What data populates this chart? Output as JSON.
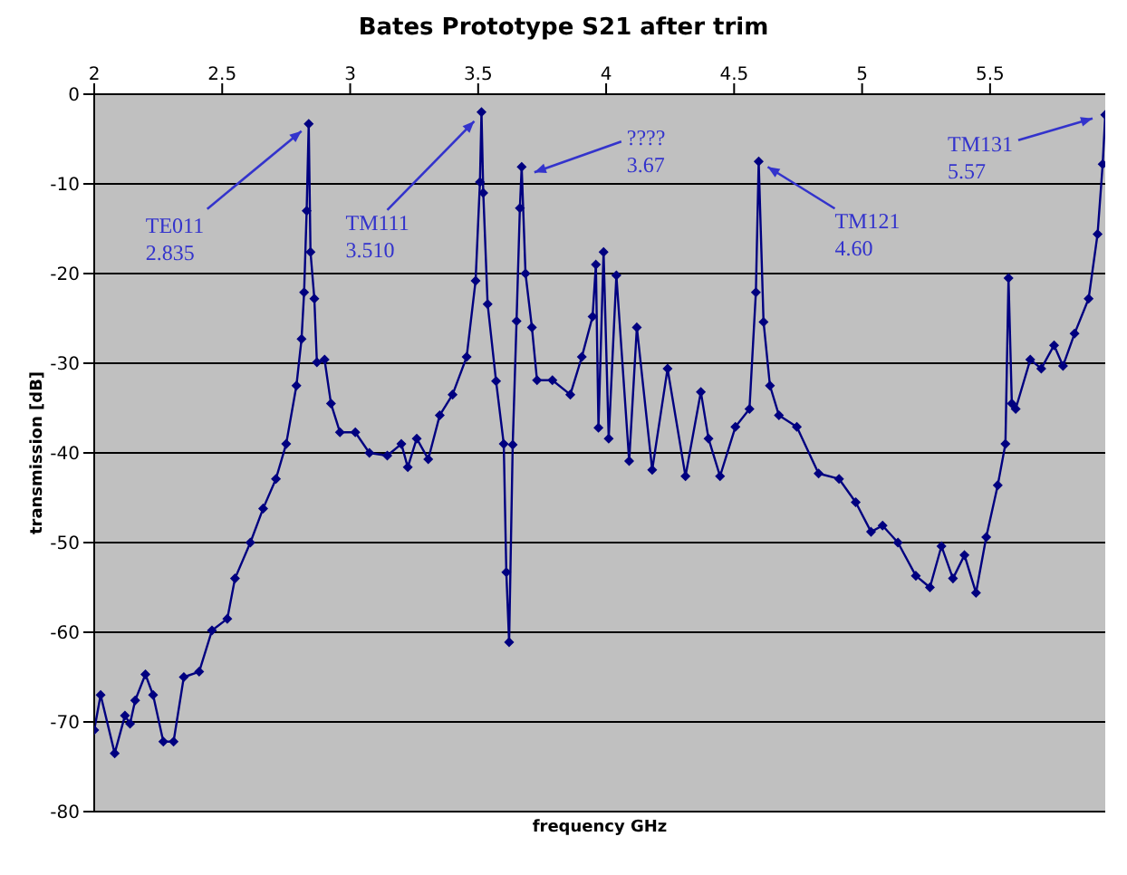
{
  "chart_data": {
    "type": "line",
    "title": "Bates Prototype S21 after trim",
    "xlabel": "frequency GHz",
    "ylabel": "transmission [dB]",
    "x": [
      2.0,
      2.025,
      2.08,
      2.12,
      2.14,
      2.16,
      2.2,
      2.23,
      2.27,
      2.31,
      2.35,
      2.41,
      2.46,
      2.52,
      2.55,
      2.61,
      2.66,
      2.71,
      2.75,
      2.79,
      2.81,
      2.82,
      2.83,
      2.838,
      2.845,
      2.86,
      2.87,
      2.9,
      2.925,
      2.96,
      3.02,
      3.075,
      3.145,
      3.2,
      3.225,
      3.26,
      3.305,
      3.35,
      3.4,
      3.455,
      3.49,
      3.507,
      3.513,
      3.52,
      3.537,
      3.57,
      3.6,
      3.61,
      3.621,
      3.635,
      3.65,
      3.663,
      3.67,
      3.685,
      3.71,
      3.73,
      3.79,
      3.86,
      3.905,
      3.947,
      3.96,
      3.97,
      3.99,
      4.01,
      4.04,
      4.09,
      4.12,
      4.18,
      4.24,
      4.31,
      4.37,
      4.4,
      4.445,
      4.505,
      4.56,
      4.585,
      4.596,
      4.615,
      4.64,
      4.675,
      4.745,
      4.83,
      4.91,
      4.975,
      5.035,
      5.08,
      5.14,
      5.21,
      5.265,
      5.31,
      5.355,
      5.4,
      5.445,
      5.485,
      5.53,
      5.56,
      5.572,
      5.585,
      5.6,
      5.657,
      5.7,
      5.75,
      5.785,
      5.83,
      5.885,
      5.92,
      5.94,
      5.95
    ],
    "series": [
      {
        "color": "#000080",
        "values": [
          -70.9,
          -67,
          -73.5,
          -69.3,
          -70.2,
          -67.6,
          -64.7,
          -67,
          -72.2,
          -72.2,
          -65,
          -64.4,
          -59.8,
          -58.5,
          -54,
          -50,
          -46.2,
          -42.9,
          -39,
          -32.5,
          -27.3,
          -22.1,
          -13,
          -3.3,
          -17.6,
          -22.8,
          -29.9,
          -29.6,
          -34.5,
          -37.7,
          -37.7,
          -40,
          -40.3,
          -39,
          -41.6,
          -38.4,
          -40.7,
          -35.8,
          -33.5,
          -29.3,
          -20.8,
          -9.8,
          -2,
          -11,
          -23.4,
          -32,
          -39,
          -53.3,
          -61.1,
          -39.1,
          -25.3,
          -12.7,
          -8.1,
          -20,
          -26,
          -31.9,
          -31.9,
          -33.5,
          -29.3,
          -24.8,
          -19,
          -37.2,
          -17.6,
          -38.4,
          -20.2,
          -40.9,
          -26,
          -41.9,
          -30.6,
          -42.6,
          -33.2,
          -38.4,
          -42.6,
          -37.1,
          -35.1,
          -22.1,
          -7.5,
          -25.4,
          -32.5,
          -35.8,
          -37.1,
          -42.3,
          -42.9,
          -45.5,
          -48.8,
          -48.1,
          -50,
          -53.7,
          -55,
          -50.4,
          -54,
          -51.4,
          -55.6,
          -49.4,
          -43.6,
          -39,
          -20.5,
          -34.5,
          -35.1,
          -29.6,
          -30.6,
          -28,
          -30.3,
          -26.7,
          -22.8,
          -15.6,
          -7.8,
          -2.3
        ]
      }
    ],
    "xlim": [
      2,
      5.95
    ],
    "xticks": [
      2,
      2.5,
      3,
      3.5,
      4,
      4.5,
      5,
      5.5
    ],
    "ylim": [
      -80,
      0
    ],
    "yticks": [
      -80,
      -70,
      -60,
      -50,
      -40,
      -30,
      -20,
      -10,
      0
    ],
    "grid": "y",
    "marker": "diamond",
    "line_style": "solid",
    "legend": false,
    "annotations": [
      {
        "text": "TE011\n2.835",
        "x": 2.838,
        "y": -3.3
      },
      {
        "text": "TM111\n3.510",
        "x": 3.513,
        "y": -2
      },
      {
        "text": "????\n3.67",
        "x": 3.67,
        "y": -8.1
      },
      {
        "text": "TM121\n4.60",
        "x": 4.596,
        "y": -7.5
      },
      {
        "text": "TM131\n5.57",
        "x": 5.95,
        "y": -2.3
      }
    ]
  }
}
